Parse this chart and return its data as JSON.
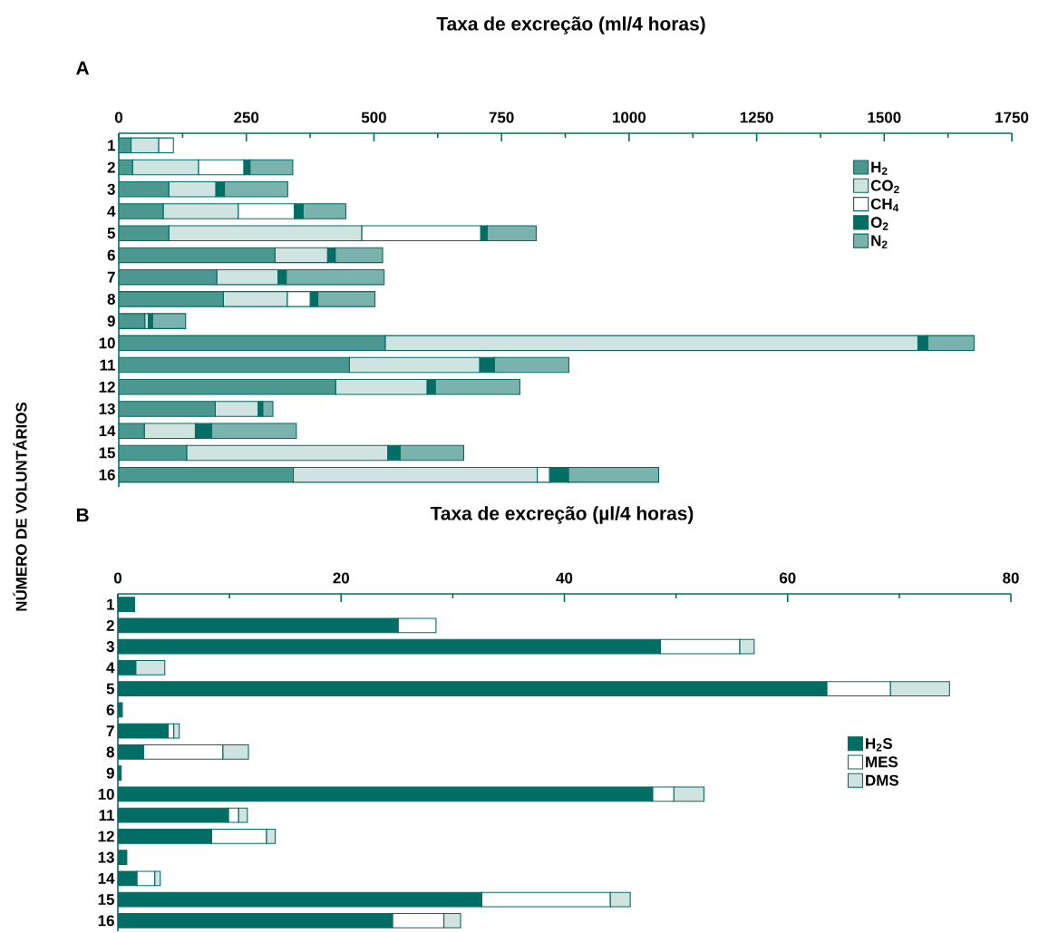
{
  "chart_data": [
    {
      "type": "bar",
      "orientation": "horizontal",
      "stacked": true,
      "title": "A",
      "xlabel": "Taxa de excreção (ml/4 horas)",
      "ylabel": "NÚMERO DE VOLUNTÁRIOS",
      "categories": [
        "1",
        "2",
        "3",
        "4",
        "5",
        "6",
        "7",
        "8",
        "9",
        "10",
        "11",
        "12",
        "13",
        "14",
        "15",
        "16"
      ],
      "series": [
        {
          "name": "H$_{2}$",
          "color": "#4a9890",
          "values": [
            24,
            27,
            98,
            87,
            98,
            306,
            192,
            205,
            51,
            522,
            452,
            425,
            189,
            50,
            133,
            342
          ]
        },
        {
          "name": "CO$_{2}$",
          "color": "#cfe3e0",
          "values": [
            54,
            129,
            92,
            147,
            378,
            103,
            120,
            125,
            7,
            1044,
            255,
            179,
            84,
            100,
            394,
            478
          ]
        },
        {
          "name": "CH$_{4}$",
          "color": "#ffffff",
          "values": [
            29,
            89,
            0,
            110,
            233,
            0,
            0,
            45,
            0,
            0,
            0,
            0,
            0,
            0,
            0,
            24
          ]
        },
        {
          "name": "O$_{2}$",
          "color": "#006e64",
          "values": [
            0,
            12,
            17,
            17,
            13,
            15,
            16,
            15,
            8,
            19,
            29,
            16,
            9,
            32,
            24,
            37
          ]
        },
        {
          "name": "N$_{2}$",
          "color": "#7ab3ad",
          "values": [
            0,
            84,
            124,
            84,
            96,
            93,
            192,
            112,
            65,
            91,
            146,
            166,
            20,
            166,
            125,
            177
          ]
        }
      ],
      "xlim": [
        0,
        1750
      ],
      "xticks": [
        0,
        {
          "value": 125,
          "label": null
        },
        250,
        {
          "value": 375,
          "label": null
        },
        500,
        {
          "value": 625,
          "label": null
        },
        750,
        {
          "value": 875,
          "label": null
        },
        1000,
        {
          "value": 1125,
          "label": null
        },
        1250,
        {
          "value": 1375,
          "label": null
        },
        1500,
        {
          "value": 1625,
          "label": null
        },
        1750
      ],
      "legend": "top right"
    },
    {
      "type": "bar",
      "orientation": "horizontal",
      "stacked": true,
      "title": "B",
      "xlabel": "Taxa de excreção (µl/4 horas)",
      "categories": [
        "1",
        "2",
        "3",
        "4",
        "5",
        "6",
        "7",
        "8",
        "9",
        "10",
        "11",
        "12",
        "13",
        "14",
        "15",
        "16"
      ],
      "series": [
        {
          "name": "H$_{2}$S",
          "color": "#006e64",
          "values": [
            1.5,
            25.1,
            48.6,
            1.6,
            63.5,
            0.4,
            4.5,
            2.3,
            0.3,
            47.9,
            9.9,
            8.4,
            0.8,
            1.7,
            32.6,
            24.6
          ]
        },
        {
          "name": "MES",
          "color": "#ffffff",
          "values": [
            0,
            3.4,
            7.1,
            0,
            5.7,
            0,
            0.5,
            7.1,
            0,
            1.9,
            0.9,
            4.9,
            0,
            1.6,
            11.5,
            4.6
          ]
        },
        {
          "name": "DMS",
          "color": "#cfe3e0",
          "values": [
            0,
            0,
            1.3,
            2.6,
            5.3,
            0,
            0.5,
            2.3,
            0,
            2.7,
            0.8,
            0.8,
            0,
            0.5,
            1.8,
            1.5
          ]
        }
      ],
      "xlim": [
        0,
        80
      ],
      "xticks": [
        0,
        {
          "value": 10,
          "label": null
        },
        20,
        {
          "value": 30,
          "label": null
        },
        40,
        {
          "value": 50,
          "label": null
        },
        60,
        {
          "value": 70,
          "label": null
        },
        80
      ],
      "legend": "right"
    }
  ]
}
